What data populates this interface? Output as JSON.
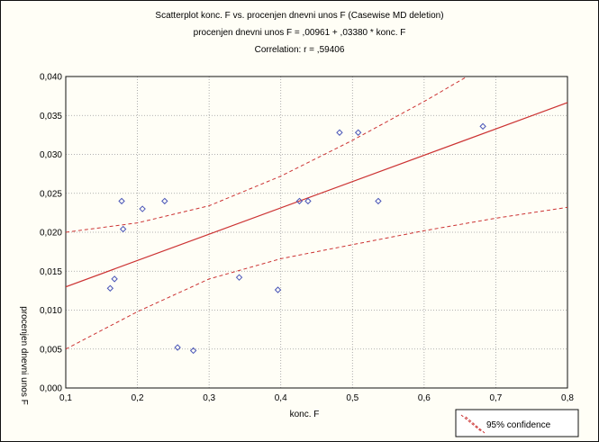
{
  "chart_data": {
    "type": "scatter",
    "title": "Scatterplot konc. F vs. procenjen dnevni unos F (Casewise MD deletion)",
    "subtitle": "procenjen dnevni unos F = ,00961 + ,03380 * konc. F",
    "annotation": "Correlation: r = ,59406",
    "xlabel": "konc. F",
    "ylabel": "procenjen dnevni unos F",
    "xlim": [
      0.1,
      0.8
    ],
    "ylim": [
      0.0,
      0.04
    ],
    "xticks": [
      "0,1",
      "0,2",
      "0,3",
      "0,4",
      "0,5",
      "0,6",
      "0,7",
      "0,8"
    ],
    "yticks": [
      "0,000",
      "0,005",
      "0,010",
      "0,015",
      "0,020",
      "0,025",
      "0,030",
      "0,035",
      "0,040"
    ],
    "grid": true,
    "legend_position": "bottom-right",
    "legend": [
      "95% confidence"
    ],
    "colors": {
      "points": "#4a56b8",
      "fit": "#cc3333",
      "confidence": "#cc3333",
      "grid": "#9a9a9a"
    },
    "points": [
      {
        "x": 0.162,
        "y": 0.0128
      },
      {
        "x": 0.168,
        "y": 0.014
      },
      {
        "x": 0.178,
        "y": 0.024
      },
      {
        "x": 0.18,
        "y": 0.0204
      },
      {
        "x": 0.207,
        "y": 0.023
      },
      {
        "x": 0.238,
        "y": 0.024
      },
      {
        "x": 0.256,
        "y": 0.0052
      },
      {
        "x": 0.278,
        "y": 0.0048
      },
      {
        "x": 0.342,
        "y": 0.0142
      },
      {
        "x": 0.396,
        "y": 0.0126
      },
      {
        "x": 0.426,
        "y": 0.024
      },
      {
        "x": 0.438,
        "y": 0.024
      },
      {
        "x": 0.482,
        "y": 0.0328
      },
      {
        "x": 0.508,
        "y": 0.0328
      },
      {
        "x": 0.536,
        "y": 0.024
      },
      {
        "x": 0.682,
        "y": 0.0336
      }
    ],
    "fit_line": {
      "intercept": 0.00961,
      "slope": 0.0338
    },
    "confidence_upper": [
      {
        "x": 0.1,
        "y": 0.02
      },
      {
        "x": 0.2,
        "y": 0.0212
      },
      {
        "x": 0.3,
        "y": 0.0234
      },
      {
        "x": 0.4,
        "y": 0.0272
      },
      {
        "x": 0.5,
        "y": 0.0318
      },
      {
        "x": 0.6,
        "y": 0.0368
      },
      {
        "x": 0.66,
        "y": 0.04
      }
    ],
    "confidence_lower": [
      {
        "x": 0.1,
        "y": 0.005
      },
      {
        "x": 0.2,
        "y": 0.0098
      },
      {
        "x": 0.3,
        "y": 0.014
      },
      {
        "x": 0.4,
        "y": 0.0166
      },
      {
        "x": 0.5,
        "y": 0.0184
      },
      {
        "x": 0.6,
        "y": 0.0202
      },
      {
        "x": 0.7,
        "y": 0.0218
      },
      {
        "x": 0.8,
        "y": 0.0232
      }
    ]
  }
}
